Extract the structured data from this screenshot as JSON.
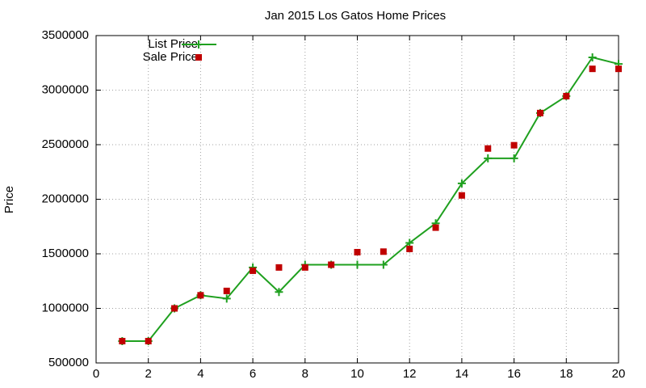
{
  "chart_data": {
    "type": "line",
    "title": "Jan 2015 Los Gatos Home Prices",
    "y_label": "Price",
    "x": [
      1,
      2,
      3,
      4,
      5,
      6,
      7,
      8,
      9,
      10,
      11,
      12,
      13,
      14,
      15,
      16,
      17,
      18,
      19,
      20
    ],
    "series": [
      {
        "name": "List Price",
        "color": "#1fa01f",
        "mode": "lines+markers",
        "values": [
          700000,
          700000,
          1000000,
          1120000,
          1090000,
          1375000,
          1150000,
          1400000,
          1400000,
          1400000,
          1400000,
          1600000,
          1780000,
          2145000,
          2375000,
          2375000,
          2790000,
          2945000,
          3300000,
          3240000
        ]
      },
      {
        "name": "Sale Price",
        "color": "#c00000",
        "mode": "markers",
        "values": [
          700000,
          700000,
          1000000,
          1120000,
          1160000,
          1345000,
          1375000,
          1375000,
          1400000,
          1515000,
          1520000,
          1545000,
          1740000,
          2035000,
          2465000,
          2495000,
          2790000,
          2945000,
          3195000,
          3195000
        ]
      }
    ],
    "xlim": [
      0,
      20
    ],
    "xticks": [
      0,
      2,
      4,
      6,
      8,
      10,
      12,
      14,
      16,
      18,
      20
    ],
    "ylim": [
      500000,
      3500000
    ],
    "yticks": [
      500000,
      1000000,
      1500000,
      2000000,
      2500000,
      3000000,
      3500000
    ],
    "grid": true,
    "legend": "top-left"
  }
}
